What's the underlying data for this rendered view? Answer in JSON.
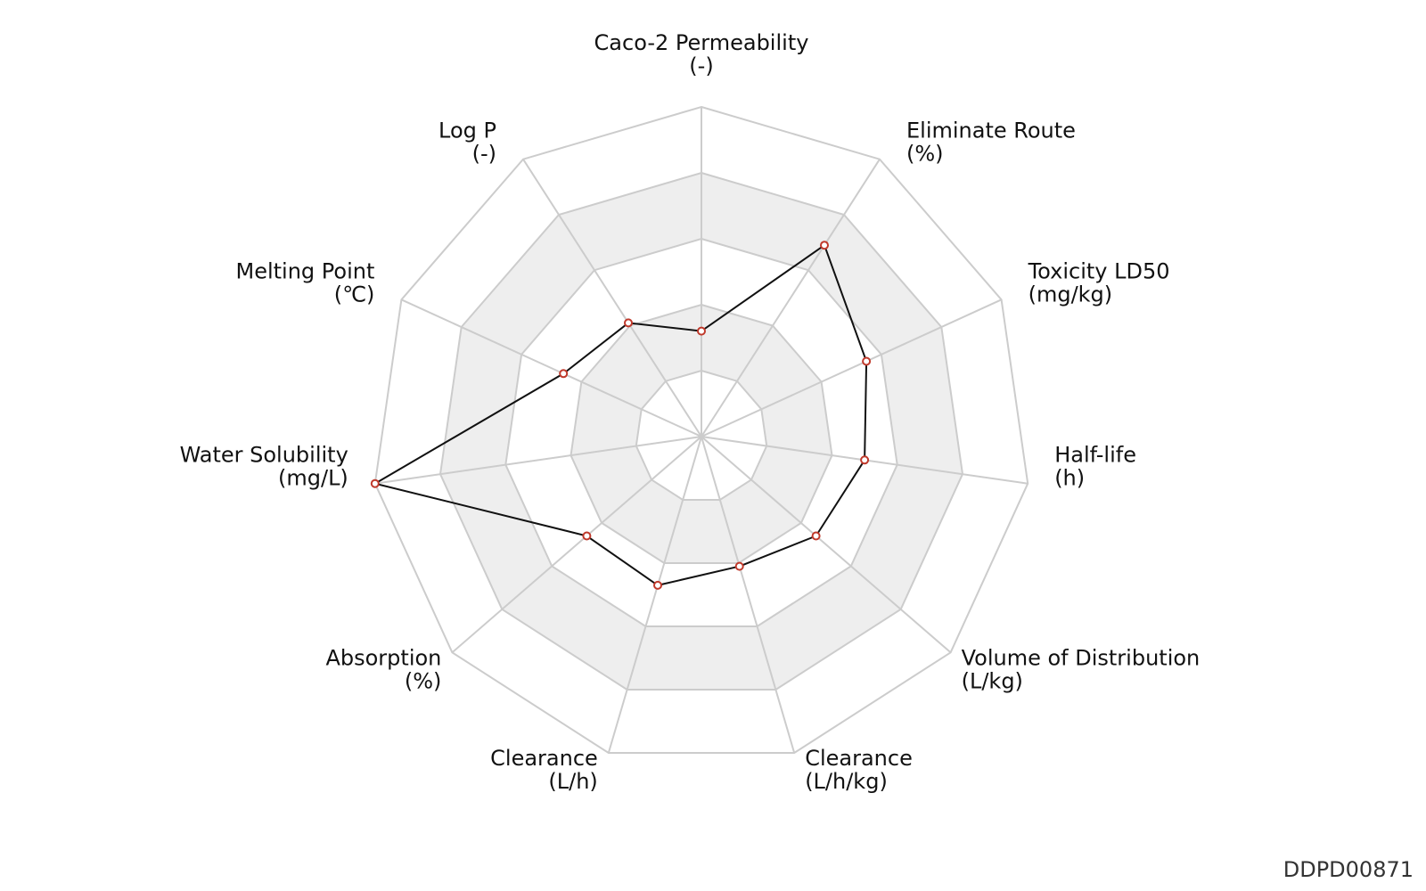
{
  "chart_data": {
    "type": "radar",
    "axes": [
      {
        "name": "Caco-2 Permeability",
        "unit": "(-)",
        "value": 0.32
      },
      {
        "name": "Eliminate Route",
        "unit": "(%)",
        "value": 0.69
      },
      {
        "name": "Toxicity LD50",
        "unit": "(mg/kg)",
        "value": 0.55
      },
      {
        "name": "Half-life",
        "unit": "(h)",
        "value": 0.5
      },
      {
        "name": "Volume of Distribution",
        "unit": "(L/kg)",
        "value": 0.46
      },
      {
        "name": "Clearance",
        "unit": "(L/h/kg)",
        "value": 0.41
      },
      {
        "name": "Clearance",
        "unit": "(L/h)",
        "value": 0.47
      },
      {
        "name": "Absorption",
        "unit": "(%)",
        "value": 0.46
      },
      {
        "name": "Water Solubility",
        "unit": "(mg/L)",
        "value": 1.0
      },
      {
        "name": "Melting Point",
        "unit": "(℃)",
        "value": 0.46
      },
      {
        "name": "Log P",
        "unit": "(-)",
        "value": 0.41
      }
    ],
    "rings": 5,
    "range": [
      0,
      1
    ],
    "grid": true,
    "colors": {
      "line": "#111111",
      "marker_stroke": "#c0392b",
      "band_fill": "#eeeeee",
      "grid_line": "#cccccc"
    }
  },
  "watermark": "DDPD00871"
}
